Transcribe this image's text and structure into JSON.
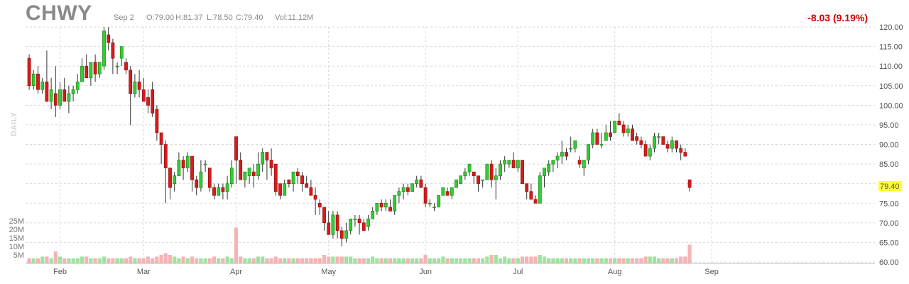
{
  "header": {
    "ticker": "CHWY",
    "date": "Sep 2",
    "open": "O:79.00",
    "high": "H:81.37",
    "low": "L:78.50",
    "close": "C:79.40",
    "volume": "Vol:11.12M",
    "change": "-8.03 (9.19%)",
    "period_label": "DAILY"
  },
  "colors": {
    "up_fill": "#33cc33",
    "up_stroke": "#1d7a1d",
    "down_fill": "#d41c1c",
    "down_stroke": "#8a0a0a",
    "wick": "#333333",
    "grid": "#d8d8d8",
    "vol_up": "#9fe29f",
    "vol_down": "#f5b3b3",
    "last_price_bg": "#ffff33",
    "change_color": "#cc0000"
  },
  "chart_data": {
    "type": "candlestick",
    "title": "CHWY",
    "y_ticks": [
      120,
      115,
      110,
      105,
      100,
      95,
      90,
      85,
      80,
      75,
      70,
      65,
      60
    ],
    "y_tick_labels": [
      "120.00",
      "115.00",
      "110.00",
      "105.00",
      "100.00",
      "95.00",
      "90.00",
      "85.00",
      "80.00",
      "75.00",
      "70.00",
      "65.00",
      "60.00"
    ],
    "ylim": [
      60,
      120
    ],
    "last_price_label": "79.40",
    "last_price": 79.4,
    "x_labels": [
      {
        "label": "Feb",
        "index": 7
      },
      {
        "label": "Mar",
        "index": 26
      },
      {
        "label": "Apr",
        "index": 47
      },
      {
        "label": "May",
        "index": 68
      },
      {
        "label": "Jun",
        "index": 90
      },
      {
        "label": "Jul",
        "index": 111
      },
      {
        "label": "Aug",
        "index": 133
      },
      {
        "label": "Sep",
        "index": 155
      }
    ],
    "volume_ticks": [
      25,
      20,
      15,
      10,
      5
    ],
    "volume_tick_labels": [
      "25M",
      "20M",
      "15M",
      "10M",
      "5M"
    ],
    "volume_unit": "M",
    "ohlcv": [
      [
        112,
        113,
        104,
        105,
        3
      ],
      [
        105,
        109,
        104,
        108,
        3
      ],
      [
        108,
        110,
        103,
        104,
        3
      ],
      [
        104,
        107,
        103,
        106,
        4
      ],
      [
        106,
        114,
        103,
        101,
        4
      ],
      [
        101,
        107,
        99,
        104,
        3
      ],
      [
        103,
        110,
        97,
        100,
        7
      ],
      [
        100,
        106,
        99,
        104,
        4
      ],
      [
        104,
        107,
        101,
        101,
        3
      ],
      [
        101,
        105,
        98,
        103,
        3
      ],
      [
        103,
        105,
        101,
        104,
        3
      ],
      [
        104,
        108,
        103,
        106,
        3
      ],
      [
        106,
        112,
        106,
        110,
        4
      ],
      [
        110,
        113,
        108,
        107,
        4
      ],
      [
        107,
        111,
        105,
        111,
        3
      ],
      [
        111,
        113,
        106,
        108,
        3
      ],
      [
        108,
        111,
        107,
        111,
        3
      ],
      [
        110,
        120,
        109,
        119,
        4
      ],
      [
        118,
        120,
        114,
        116,
        3
      ],
      [
        116,
        117,
        108,
        112,
        3
      ],
      [
        110,
        111,
        108,
        110,
        3
      ],
      [
        112,
        113,
        110,
        115,
        3
      ],
      [
        111,
        112,
        108,
        109,
        3
      ],
      [
        109,
        110,
        95,
        103,
        4
      ],
      [
        103,
        108,
        102,
        106,
        3
      ],
      [
        106,
        109,
        102,
        104,
        3
      ],
      [
        104,
        107,
        101,
        101,
        3
      ],
      [
        102,
        104,
        98,
        100,
        4
      ],
      [
        104,
        106,
        97,
        98,
        3
      ],
      [
        99,
        100,
        91,
        93,
        4
      ],
      [
        93,
        93,
        85,
        90,
        5
      ],
      [
        90,
        91,
        75,
        84,
        6
      ],
      [
        84,
        84,
        76,
        79,
        5
      ],
      [
        80,
        83,
        78,
        82,
        4
      ],
      [
        82,
        88,
        82,
        86,
        3
      ],
      [
        86,
        87,
        81,
        84,
        4
      ],
      [
        84,
        88,
        83,
        87,
        3
      ],
      [
        87,
        87,
        78,
        81,
        4
      ],
      [
        81,
        82,
        77,
        79,
        3
      ],
      [
        79,
        86,
        78,
        83,
        3
      ],
      [
        85,
        86,
        83,
        85,
        3
      ],
      [
        84,
        84,
        78,
        79,
        3
      ],
      [
        79,
        80,
        76,
        77,
        4
      ],
      [
        77,
        80,
        77,
        79,
        3
      ],
      [
        79,
        80,
        76,
        78,
        3
      ],
      [
        78,
        82,
        76,
        80,
        4
      ],
      [
        80,
        86,
        79,
        84,
        3
      ],
      [
        92,
        92,
        80,
        86,
        21
      ],
      [
        86,
        88,
        83,
        81,
        4
      ],
      [
        81,
        83,
        79,
        83,
        3
      ],
      [
        82,
        84,
        80,
        84,
        3
      ],
      [
        83,
        85,
        79,
        82,
        3
      ],
      [
        82,
        88,
        81,
        85,
        4
      ],
      [
        85,
        89,
        83,
        88,
        4
      ],
      [
        88,
        88,
        81,
        86,
        3
      ],
      [
        86,
        89,
        82,
        84,
        3
      ],
      [
        85,
        85,
        77,
        78,
        4
      ],
      [
        80,
        80,
        76,
        77,
        3
      ],
      [
        77,
        81,
        77,
        80,
        3
      ],
      [
        81,
        81,
        79,
        80,
        3
      ],
      [
        80,
        83,
        78,
        83,
        3
      ],
      [
        83,
        84,
        80,
        82,
        3
      ],
      [
        82,
        83,
        78,
        80,
        3
      ],
      [
        80,
        82,
        79,
        79,
        3
      ],
      [
        79,
        81,
        77,
        77,
        3
      ],
      [
        77,
        79,
        72,
        76,
        3
      ],
      [
        75,
        76,
        72,
        74,
        3
      ],
      [
        74,
        74,
        68,
        70,
        5
      ],
      [
        70,
        73,
        67,
        67,
        4
      ],
      [
        67,
        73,
        66,
        72,
        4
      ],
      [
        72,
        73,
        66,
        68,
        4
      ],
      [
        68,
        69,
        64,
        66,
        4
      ],
      [
        66,
        70,
        65,
        68,
        4
      ],
      [
        68,
        71,
        67,
        71,
        4
      ],
      [
        71,
        72,
        69,
        71,
        3
      ],
      [
        71,
        72,
        67,
        70,
        3
      ],
      [
        70,
        71,
        68,
        68,
        3
      ],
      [
        69,
        72,
        68,
        71,
        3
      ],
      [
        71,
        74,
        71,
        73,
        4
      ],
      [
        73,
        75,
        72,
        75,
        3
      ],
      [
        75,
        76,
        73,
        74,
        3
      ],
      [
        74,
        76,
        73,
        75,
        3
      ],
      [
        74,
        76,
        73,
        73,
        3
      ],
      [
        73,
        77,
        72,
        77,
        3
      ],
      [
        77,
        79,
        75,
        78,
        3
      ],
      [
        78,
        80,
        76,
        79,
        3
      ],
      [
        79,
        80,
        77,
        78,
        3
      ],
      [
        78,
        80,
        78,
        80,
        3
      ],
      [
        80,
        82,
        79,
        81,
        3
      ],
      [
        81,
        82,
        79,
        79,
        3
      ],
      [
        79,
        80,
        74,
        75,
        5
      ],
      [
        75,
        76,
        74,
        75,
        3
      ],
      [
        74,
        75,
        73,
        74,
        3
      ],
      [
        74,
        77,
        74,
        77,
        3
      ],
      [
        77,
        79,
        77,
        79,
        4
      ],
      [
        78,
        79,
        77,
        77,
        3
      ],
      [
        77,
        79,
        76,
        79,
        3
      ],
      [
        79,
        81,
        79,
        81,
        3
      ],
      [
        80,
        82,
        80,
        82,
        3
      ],
      [
        82,
        84,
        81,
        83,
        3
      ],
      [
        83,
        85,
        82,
        85,
        3
      ],
      [
        83,
        83,
        80,
        82,
        3
      ],
      [
        82,
        82,
        78,
        80,
        3
      ],
      [
        81,
        81,
        79,
        81,
        3
      ],
      [
        81,
        85,
        81,
        85,
        4
      ],
      [
        85,
        86,
        79,
        81,
        5
      ],
      [
        81,
        84,
        76,
        82,
        5
      ],
      [
        82,
        86,
        81,
        85,
        3
      ],
      [
        85,
        87,
        83,
        86,
        4
      ],
      [
        85,
        86,
        84,
        86,
        3
      ],
      [
        86,
        88,
        85,
        84,
        3
      ],
      [
        84,
        86,
        83,
        86,
        3
      ],
      [
        86,
        86,
        81,
        80,
        4
      ],
      [
        80,
        80,
        76,
        78,
        4
      ],
      [
        78,
        80,
        76,
        76,
        4
      ],
      [
        76,
        77,
        75,
        75,
        4
      ],
      [
        75,
        83,
        75,
        82,
        5
      ],
      [
        82,
        84,
        79,
        84,
        4
      ],
      [
        83,
        86,
        82,
        85,
        3
      ],
      [
        85,
        86,
        83,
        86,
        3
      ],
      [
        86,
        88,
        84,
        87,
        3
      ],
      [
        87,
        91,
        85,
        88,
        3
      ],
      [
        88,
        89,
        86,
        87,
        3
      ],
      [
        89,
        92,
        88,
        89,
        3
      ],
      [
        89,
        91,
        88,
        91,
        3
      ],
      [
        86,
        87,
        84,
        85,
        3
      ],
      [
        84,
        86,
        82,
        86,
        3
      ],
      [
        86,
        90,
        85,
        90,
        3
      ],
      [
        90,
        94,
        89,
        93,
        3
      ],
      [
        93,
        94,
        91,
        90,
        3
      ],
      [
        90,
        93,
        89,
        90,
        3
      ],
      [
        91,
        95,
        91,
        93,
        3
      ],
      [
        93,
        96,
        91,
        92,
        3
      ],
      [
        93,
        96,
        93,
        96,
        3
      ],
      [
        96,
        98,
        95,
        95,
        3
      ],
      [
        95,
        96,
        92,
        93,
        3
      ],
      [
        93,
        95,
        92,
        94,
        3
      ],
      [
        94,
        95,
        91,
        91,
        3
      ],
      [
        92,
        93,
        90,
        91,
        3
      ],
      [
        91,
        92,
        89,
        90,
        3
      ],
      [
        90,
        91,
        87,
        87,
        4
      ],
      [
        87,
        90,
        86,
        89,
        4
      ],
      [
        89,
        93,
        88,
        92,
        4
      ],
      [
        92,
        93,
        90,
        92,
        3
      ],
      [
        92,
        92,
        90,
        90,
        3
      ],
      [
        90,
        91,
        88,
        89,
        3
      ],
      [
        89,
        92,
        88,
        91,
        3
      ],
      [
        91,
        91,
        88,
        89,
        3
      ],
      [
        89,
        90,
        86,
        88,
        4
      ],
      [
        88,
        89,
        87,
        87,
        4
      ],
      [
        81,
        81,
        78,
        79,
        11
      ]
    ]
  }
}
